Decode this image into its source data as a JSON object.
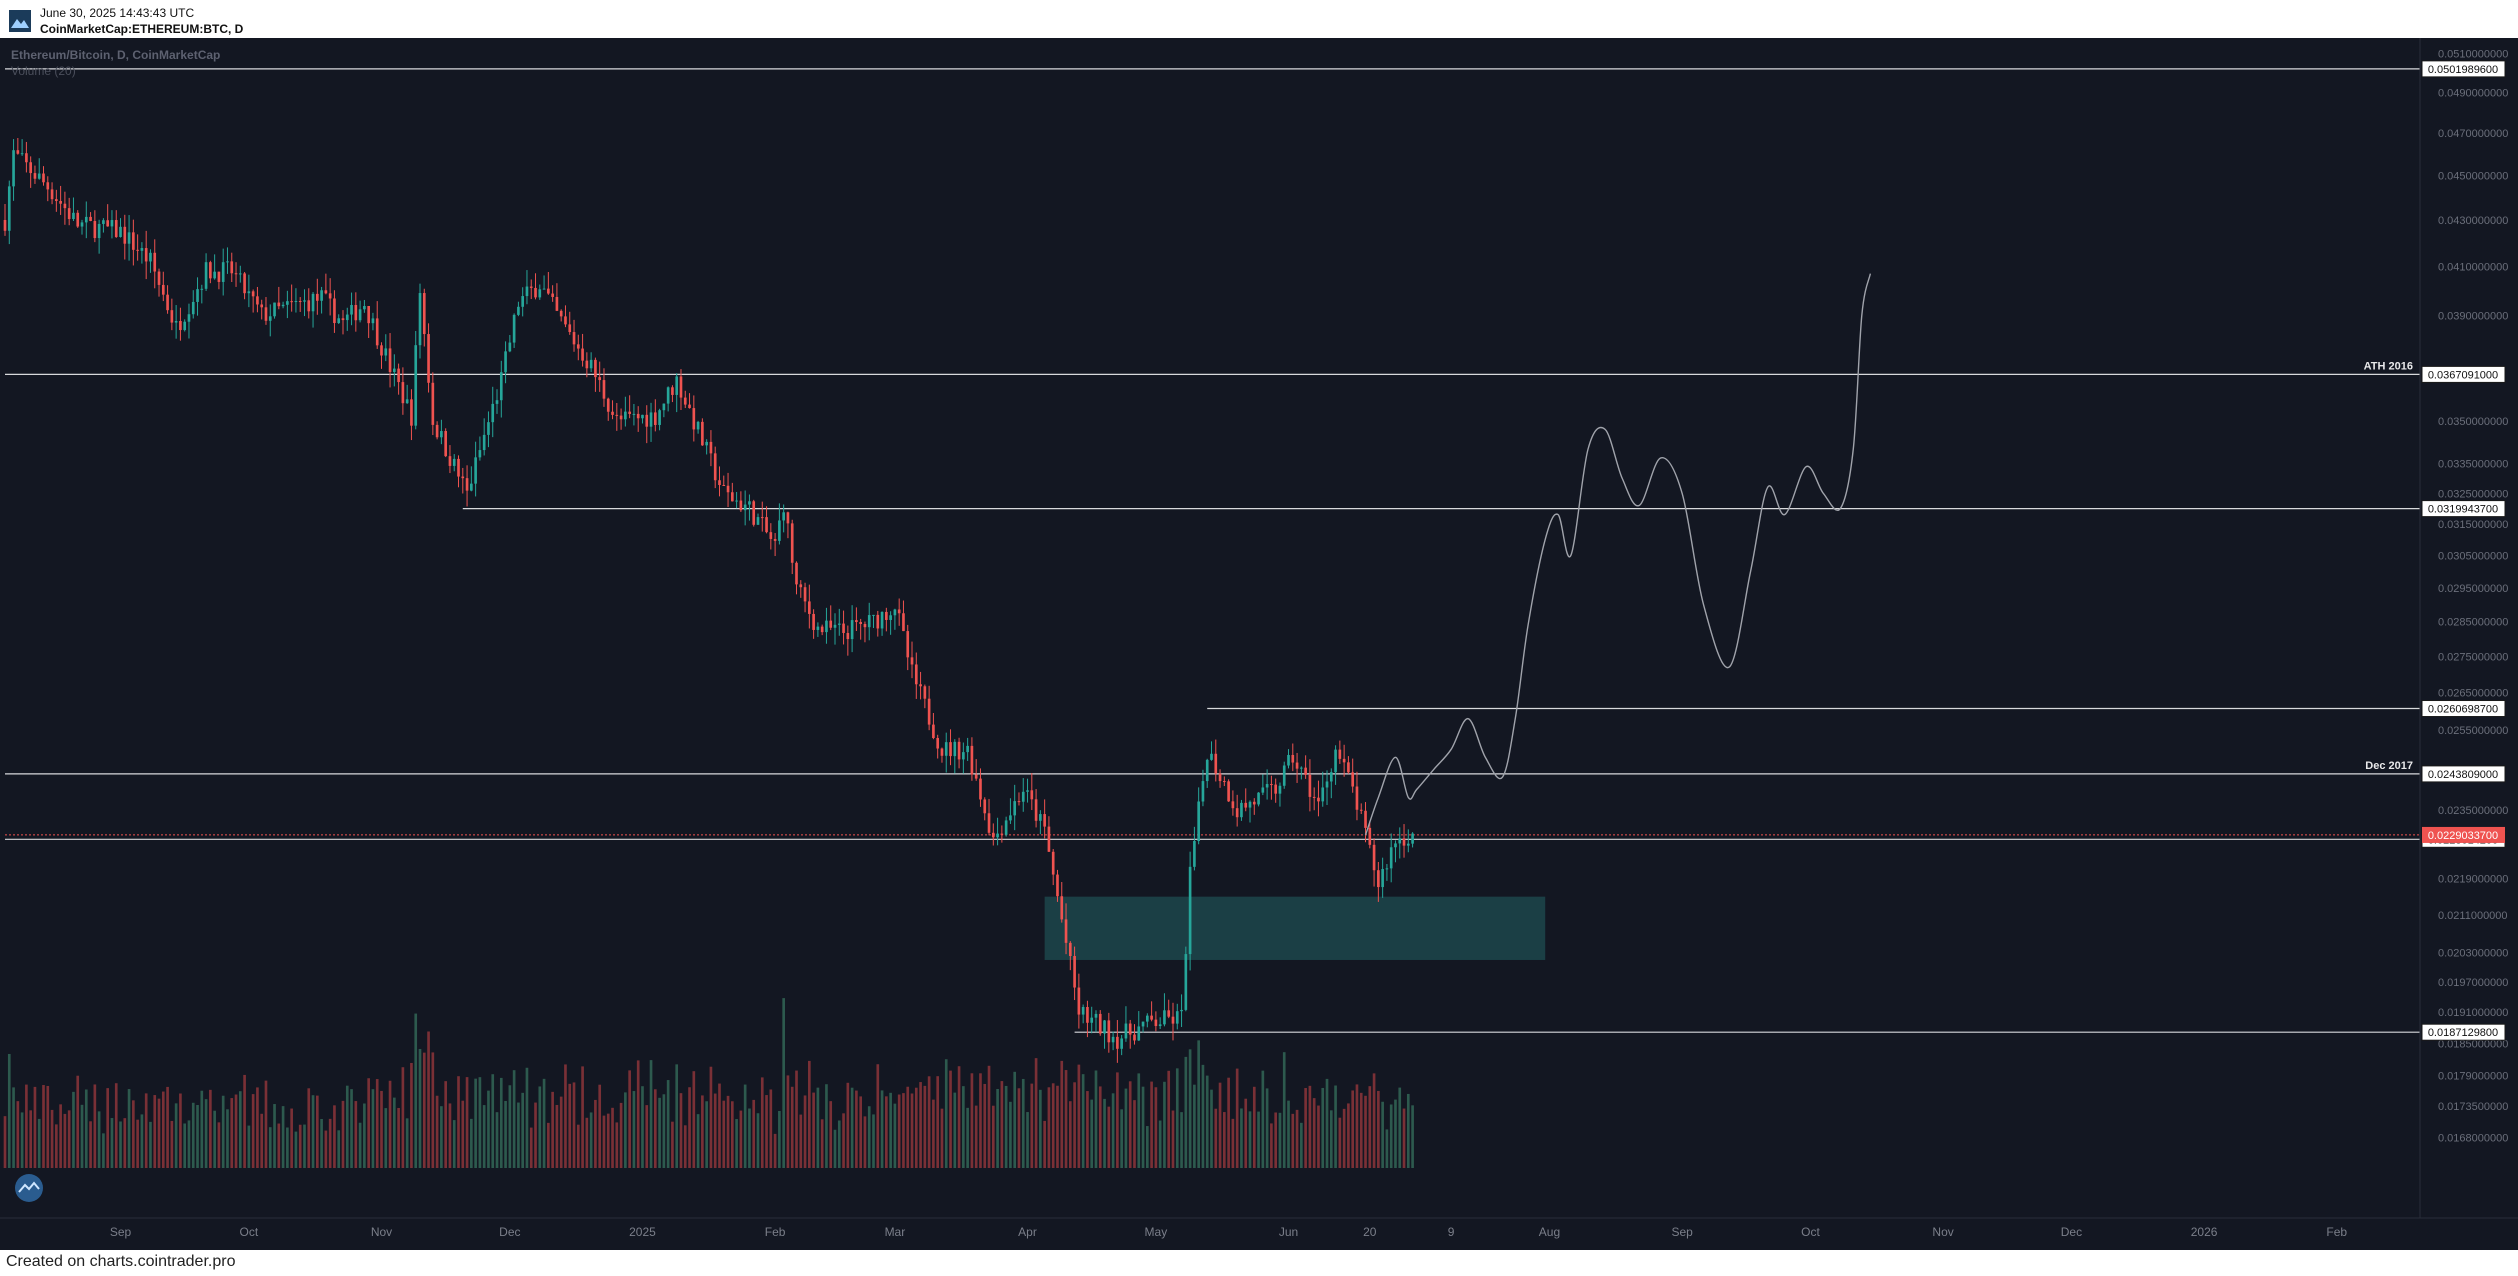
{
  "header": {
    "date": "June 30, 2025 14:43:43 UTC",
    "symbol": "CoinMarketCap:ETHEREUM:BTC, D"
  },
  "footer": {
    "text": "Created on charts.cointrader.pro"
  },
  "colors": {
    "background": "#131722",
    "up": "#26a69a",
    "down": "#ef5350",
    "volume_up": "#2d5a4e",
    "volume_down": "#7a3036",
    "zone": "#1f4d52",
    "projection": "#a0a3ab",
    "current_price": "#ef5350"
  },
  "chart_data": {
    "type": "candlestick",
    "title": "Ethereum/Bitcoin, D, CoinMarketCap",
    "subtitle": "Volume (20)",
    "y_scale": "log",
    "ylim": [
      0.01615,
      0.0516
    ],
    "x_range": [
      "2024-08-05",
      "2026-02-20"
    ],
    "x_tick_labels": [
      {
        "label": "Sep",
        "date": "2024-09-01"
      },
      {
        "label": "Oct",
        "date": "2024-10-01"
      },
      {
        "label": "Nov",
        "date": "2024-11-01"
      },
      {
        "label": "Dec",
        "date": "2024-12-01"
      },
      {
        "label": "2025",
        "date": "2025-01-01"
      },
      {
        "label": "Feb",
        "date": "2025-02-01"
      },
      {
        "label": "Mar",
        "date": "2025-03-01"
      },
      {
        "label": "Apr",
        "date": "2025-04-01"
      },
      {
        "label": "May",
        "date": "2025-05-01"
      },
      {
        "label": "Jun",
        "date": "2025-06-01"
      },
      {
        "label": "20",
        "date": "2025-06-20"
      },
      {
        "label": "9",
        "date": "2025-07-09"
      },
      {
        "label": "Aug",
        "date": "2025-08-01"
      },
      {
        "label": "Sep",
        "date": "2025-09-01"
      },
      {
        "label": "Oct",
        "date": "2025-10-01"
      },
      {
        "label": "Nov",
        "date": "2025-11-01"
      },
      {
        "label": "Dec",
        "date": "2025-12-01"
      },
      {
        "label": "2026",
        "date": "2026-01-01"
      },
      {
        "label": "Feb",
        "date": "2026-02-01"
      }
    ],
    "y_tick_labels": [
      "0.0510000000",
      "0.0490000000",
      "0.0470000000",
      "0.0450000000",
      "0.0430000000",
      "0.0410000000",
      "0.0390000000",
      "0.0350000000",
      "0.0335000000",
      "0.0325000000",
      "0.0315000000",
      "0.0305000000",
      "0.0295000000",
      "0.0285000000",
      "0.0275000000",
      "0.0265000000",
      "0.0255000000",
      "0.0235000000",
      "0.0219000000",
      "0.0211000000",
      "0.0203000000",
      "0.0197000000",
      "0.0191000000",
      "0.0185000000",
      "0.0179000000",
      "0.0173500000",
      "0.0168000000"
    ],
    "price_levels": [
      {
        "value": 0.05019896,
        "label": "0.0501989600",
        "start": "2024-08-05",
        "note": ""
      },
      {
        "value": 0.0367091,
        "label": "0.0367091000",
        "start": "2024-08-05",
        "note": "ATH 2016"
      },
      {
        "value": 0.03199437,
        "label": "0.0319943700",
        "start": "2024-11-20",
        "note": ""
      },
      {
        "value": 0.02606987,
        "label": "0.0260698700",
        "start": "2025-05-13",
        "note": ""
      },
      {
        "value": 0.0243809,
        "label": "0.0243809000",
        "start": "2024-08-05",
        "note": "Dec 2017"
      },
      {
        "value": 0.02280142,
        "label": "0.0228014200",
        "start": "2024-08-05",
        "note": ""
      },
      {
        "value": 0.01871298,
        "label": "0.0187129800",
        "start": "2025-04-12",
        "note": ""
      }
    ],
    "current_price": {
      "value": 0.02290337,
      "label": "0.0229033700"
    },
    "zone": {
      "start": "2025-04-05",
      "end": "2025-07-31",
      "top": 0.0215,
      "bottom": 0.02015
    },
    "candles": {
      "start": "2024-08-05",
      "end": "2025-06-30",
      "anchors": [
        [
          "2024-08-05",
          0.043
        ],
        [
          "2024-08-07",
          0.046
        ],
        [
          "2024-08-15",
          0.0445
        ],
        [
          "2024-08-22",
          0.0428
        ],
        [
          "2024-09-01",
          0.0425
        ],
        [
          "2024-09-08",
          0.0412
        ],
        [
          "2024-09-14",
          0.0385
        ],
        [
          "2024-09-21",
          0.0408
        ],
        [
          "2024-09-27",
          0.0408
        ],
        [
          "2024-10-04",
          0.039
        ],
        [
          "2024-10-12",
          0.0394
        ],
        [
          "2024-10-18",
          0.0397
        ],
        [
          "2024-10-23",
          0.0387
        ],
        [
          "2024-10-28",
          0.0395
        ],
        [
          "2024-11-03",
          0.037
        ],
        [
          "2024-11-08",
          0.0352
        ],
        [
          "2024-11-10",
          0.04
        ],
        [
          "2024-11-13",
          0.035
        ],
        [
          "2024-11-21",
          0.0325
        ],
        [
          "2024-11-29",
          0.0365
        ],
        [
          "2024-12-03",
          0.0395
        ],
        [
          "2024-12-08",
          0.0403
        ],
        [
          "2024-12-12",
          0.039
        ],
        [
          "2024-12-20",
          0.037
        ],
        [
          "2024-12-26",
          0.035
        ],
        [
          "2025-01-04",
          0.0352
        ],
        [
          "2025-01-09",
          0.0365
        ],
        [
          "2025-01-13",
          0.035
        ],
        [
          "2025-01-20",
          0.0325
        ],
        [
          "2025-01-26",
          0.032
        ],
        [
          "2025-02-01",
          0.0308
        ],
        [
          "2025-02-03",
          0.0322
        ],
        [
          "2025-02-06",
          0.0295
        ],
        [
          "2025-02-11",
          0.0283
        ],
        [
          "2025-02-17",
          0.0282
        ],
        [
          "2025-02-24",
          0.0285
        ],
        [
          "2025-03-01",
          0.029
        ],
        [
          "2025-03-05",
          0.027
        ],
        [
          "2025-03-12",
          0.025
        ],
        [
          "2025-03-18",
          0.025
        ],
        [
          "2025-03-24",
          0.0228
        ],
        [
          "2025-03-31",
          0.024
        ],
        [
          "2025-04-05",
          0.023
        ],
        [
          "2025-04-09",
          0.021
        ],
        [
          "2025-04-13",
          0.0191
        ],
        [
          "2025-04-22",
          0.0186
        ],
        [
          "2025-04-30",
          0.0189
        ],
        [
          "2025-05-07",
          0.019
        ],
        [
          "2025-05-09",
          0.022
        ],
        [
          "2025-05-13",
          0.025
        ],
        [
          "2025-05-20",
          0.0235
        ],
        [
          "2025-05-29",
          0.024
        ],
        [
          "2025-06-02",
          0.0248
        ],
        [
          "2025-06-08",
          0.0236
        ],
        [
          "2025-06-12",
          0.025
        ],
        [
          "2025-06-16",
          0.024
        ],
        [
          "2025-06-22",
          0.0218
        ],
        [
          "2025-06-26",
          0.0228
        ],
        [
          "2025-06-30",
          0.0229
        ]
      ]
    },
    "volume_peaks": [
      [
        "2025-02-03",
        0.95
      ],
      [
        "2025-05-09",
        0.62
      ],
      [
        "2024-12-31",
        0.55
      ],
      [
        "2025-06-12",
        0.48
      ]
    ],
    "projection_path": [
      [
        "2025-06-19",
        0.0229
      ],
      [
        "2025-06-22",
        0.0238
      ],
      [
        "2025-06-26",
        0.0248
      ],
      [
        "2025-06-29",
        0.0238
      ],
      [
        "2025-07-01",
        0.024
      ],
      [
        "2025-07-05",
        0.0245
      ],
      [
        "2025-07-09",
        0.025
      ],
      [
        "2025-07-13",
        0.0258
      ],
      [
        "2025-07-17",
        0.0248
      ],
      [
        "2025-07-21",
        0.0243
      ],
      [
        "2025-07-24",
        0.0258
      ],
      [
        "2025-07-27",
        0.0284
      ],
      [
        "2025-07-31",
        0.031
      ],
      [
        "2025-08-03",
        0.0318
      ],
      [
        "2025-08-06",
        0.0305
      ],
      [
        "2025-08-10",
        0.034
      ],
      [
        "2025-08-14",
        0.0347
      ],
      [
        "2025-08-18",
        0.033
      ],
      [
        "2025-08-22",
        0.0321
      ],
      [
        "2025-08-27",
        0.0337
      ],
      [
        "2025-09-01",
        0.0325
      ],
      [
        "2025-09-06",
        0.029
      ],
      [
        "2025-09-12",
        0.0272
      ],
      [
        "2025-09-17",
        0.03
      ],
      [
        "2025-09-21",
        0.0327
      ],
      [
        "2025-09-25",
        0.0318
      ],
      [
        "2025-09-30",
        0.0334
      ],
      [
        "2025-10-04",
        0.0325
      ],
      [
        "2025-10-08",
        0.032
      ],
      [
        "2025-10-11",
        0.034
      ],
      [
        "2025-10-13",
        0.039
      ],
      [
        "2025-10-15",
        0.0407
      ]
    ]
  }
}
